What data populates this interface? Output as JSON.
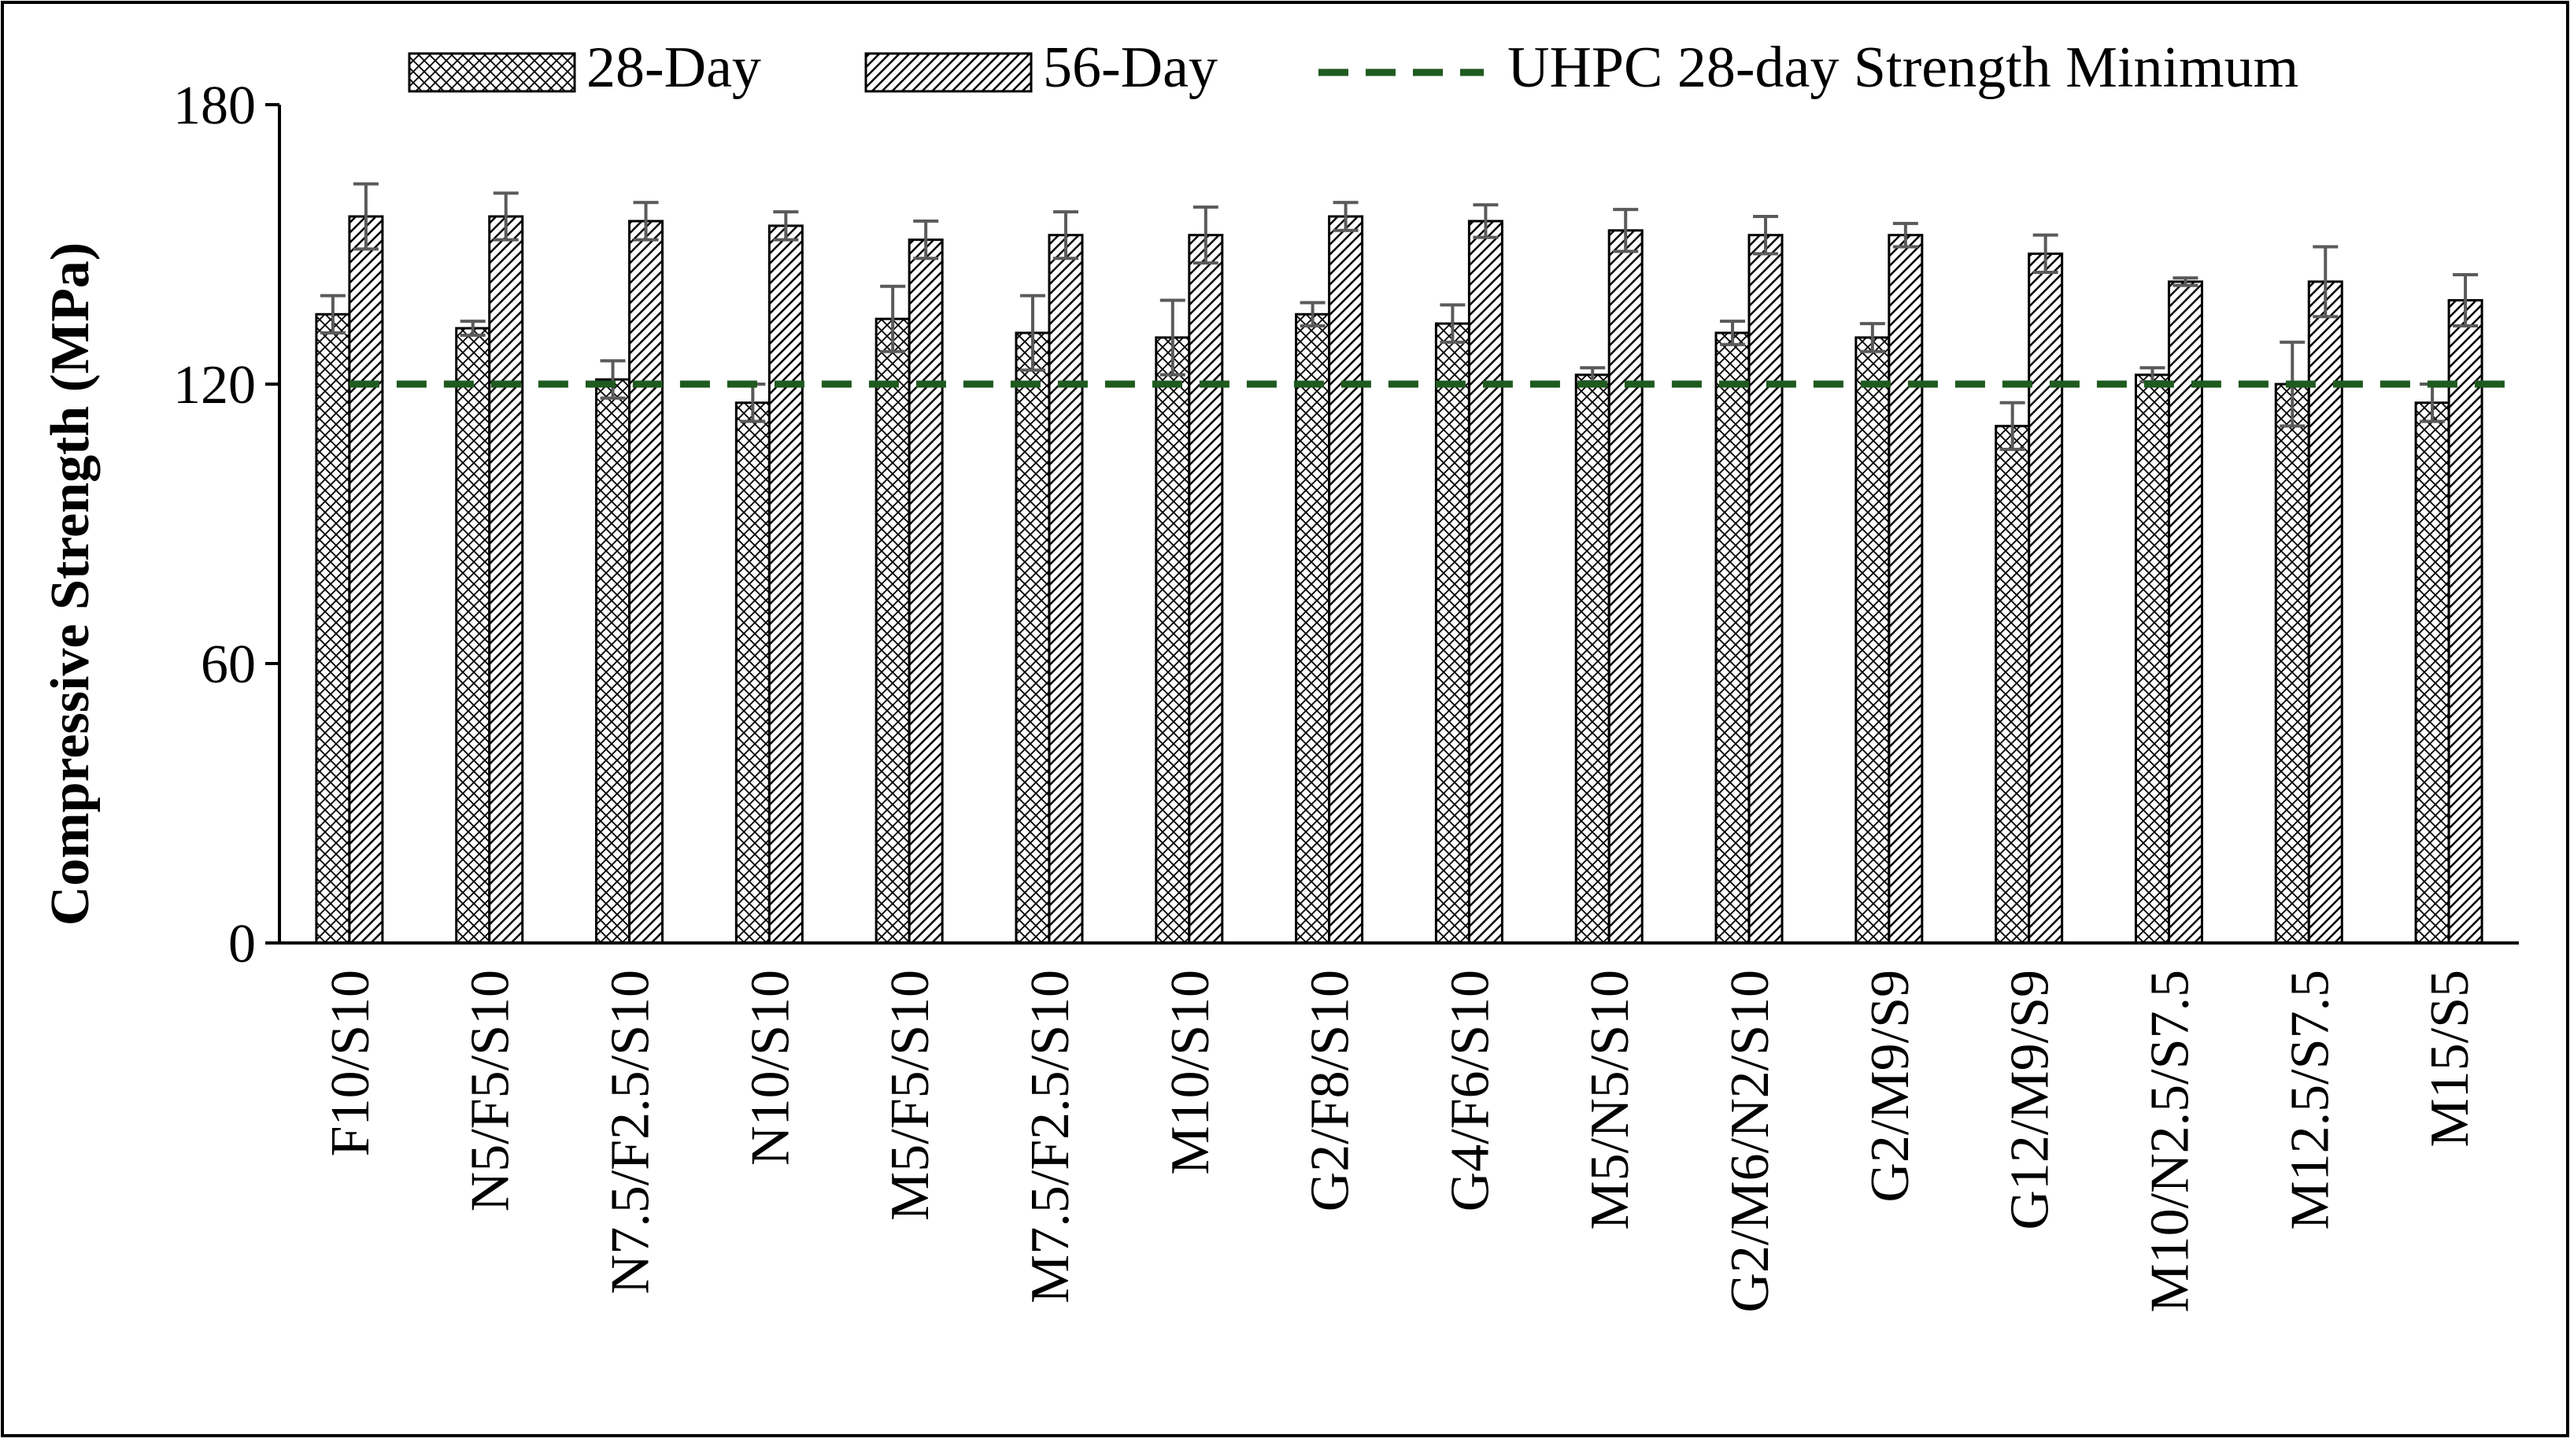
{
  "chart_data": {
    "type": "bar",
    "title": "",
    "ylabel": "Compressive Strength (MPa)",
    "xlabel": "",
    "ylim": [
      0,
      180
    ],
    "yticks": [
      0,
      60,
      120,
      180
    ],
    "grid": false,
    "legend_position": "top",
    "categories": [
      "F10/S10",
      "N5/F5/S10",
      "N7.5/F2.5/S10",
      "N10/S10",
      "M5/F5/S10",
      "M7.5/F2.5/S10",
      "M10/S10",
      "G2/F8/S10",
      "G4/F6/S10",
      "M5/N5/S10",
      "G2/M6/N2/S10",
      "G2/M9/S9",
      "G12/M9/S9",
      "M10/N2.5/S7.5",
      "M12.5/S7.5",
      "M15/S5"
    ],
    "series": [
      {
        "name": "28-Day",
        "pattern": "crosshatch",
        "values": [
          135,
          132,
          121,
          116,
          134,
          131,
          130,
          135,
          133,
          122,
          131,
          130,
          111,
          122,
          120,
          116
        ],
        "error": [
          4,
          1.5,
          4,
          4,
          7,
          8,
          8,
          2.5,
          4,
          1.5,
          2.5,
          3,
          5,
          1.5,
          9,
          4
        ]
      },
      {
        "name": "56-Day",
        "pattern": "diagonal-stripes",
        "values": [
          156,
          156,
          155,
          154,
          151,
          152,
          152,
          156,
          155,
          153,
          152,
          152,
          148,
          142,
          142,
          138
        ],
        "error": [
          7,
          5,
          4,
          3,
          4,
          5,
          6,
          3,
          3.5,
          4.5,
          4,
          2.5,
          4,
          0.8,
          7.5,
          5.5
        ]
      }
    ],
    "reference_line": {
      "name": "UHPC 28-day Strength Minimum",
      "value": 120,
      "color": "#1f5a1f",
      "style": "dashed"
    }
  }
}
